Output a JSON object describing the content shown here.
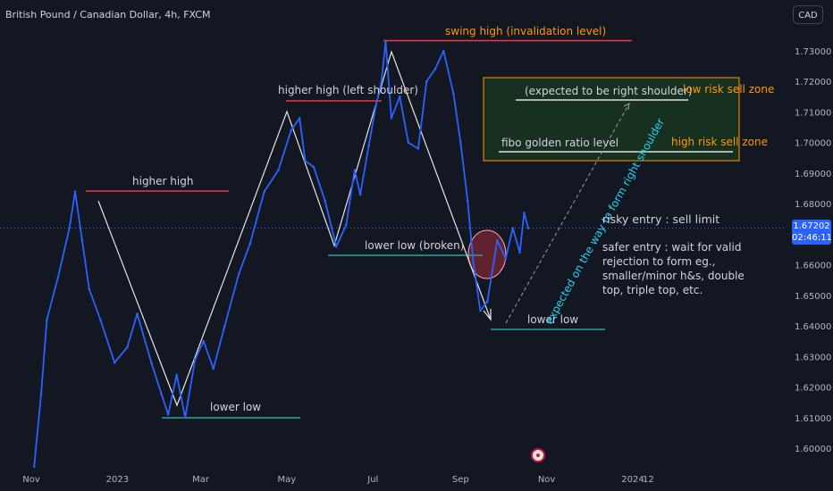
{
  "header": {
    "symbol": "British Pound / Canadian Dollar, 4h, FXCM",
    "currency": "CAD"
  },
  "price_badge": {
    "price": "1.67202",
    "countdown": "02:46:11"
  },
  "annotations": {
    "swing_high": "swing high (invalidation level)",
    "higher_high_left": "higher high (left shoulder)",
    "higher_high": "higher high",
    "lower_low_broken": "lower low (broken)",
    "lower_low_1": "lower low",
    "lower_low_2": "lower low",
    "expected_right_shoulder": "(expected to be right shoulder)",
    "fibo": "fibo golden ratio level",
    "low_risk_zone": "low risk sell zone",
    "high_risk_zone": "high risk sell zone",
    "diagonal": "expected on the way to form right shoulder",
    "risky_entry": "risky entry : sell limit",
    "safer_entry": "safer entry : wait for valid rejection to form eg., smaller/minor h&s, double top, triple top, etc."
  },
  "colors": {
    "background": "#131722",
    "price_line": "#2962ff",
    "resistance": "#f23645",
    "support": "#26a69a",
    "zone_border": "#ff9800",
    "zone_fill": "#1b3a1f",
    "label_orange": "#ff9800",
    "label_cyan": "#22d3ee",
    "text": "#d1d4dc"
  },
  "chart_data": {
    "type": "line",
    "title": "British Pound / Canadian Dollar, 4h, FXCM",
    "ylim": [
      1.592,
      1.7425
    ],
    "y_ticks": [
      "1.73000",
      "1.72000",
      "1.71000",
      "1.70000",
      "1.69000",
      "1.68000",
      "1.67000",
      "1.66000",
      "1.65000",
      "1.64000",
      "1.63000",
      "1.62000",
      "1.61000",
      "1.60000"
    ],
    "y_tick_values": [
      1.73,
      1.72,
      1.71,
      1.7,
      1.69,
      1.68,
      1.67,
      1.66,
      1.65,
      1.64,
      1.63,
      1.62,
      1.61,
      1.6
    ],
    "x_ticks": [
      "Nov",
      "2023",
      "Mar",
      "May",
      "Jul",
      "Sep",
      "Nov",
      "2024",
      "12"
    ],
    "x_tick_dates": [
      "2022-11-01",
      "2023-01-01",
      "2023-03-01",
      "2023-05-01",
      "2023-07-01",
      "2023-09-01",
      "2023-11-01",
      "2024-01-01",
      "2024-01-12"
    ],
    "grid": false,
    "last_price": 1.67202,
    "series": [
      {
        "x": [
          "2022-11-03",
          "2022-11-08",
          "2022-11-12",
          "2022-11-20",
          "2022-11-28",
          "2022-12-02",
          "2022-12-07",
          "2022-12-12",
          "2022-12-20",
          "2022-12-30",
          "2023-01-08",
          "2023-01-15",
          "2023-01-25",
          "2023-02-01",
          "2023-02-06",
          "2023-02-12",
          "2023-02-18",
          "2023-02-25",
          "2023-03-03",
          "2023-03-10",
          "2023-03-18",
          "2023-03-28",
          "2023-04-05",
          "2023-04-15",
          "2023-04-25",
          "2023-05-04",
          "2023-05-10",
          "2023-05-14",
          "2023-05-20",
          "2023-05-28",
          "2023-06-05",
          "2023-06-12",
          "2023-06-18",
          "2023-06-22",
          "2023-06-28",
          "2023-07-03",
          "2023-07-07",
          "2023-07-10",
          "2023-07-14",
          "2023-07-20",
          "2023-07-26",
          "2023-08-02",
          "2023-08-08",
          "2023-08-14",
          "2023-08-20",
          "2023-08-27",
          "2023-09-01",
          "2023-09-06",
          "2023-09-10",
          "2023-09-15",
          "2023-09-20",
          "2023-09-27",
          "2023-10-03",
          "2023-10-08",
          "2023-10-13",
          "2023-10-16",
          "2023-10-19"
        ],
        "values": [
          1.594,
          1.618,
          1.642,
          1.656,
          1.672,
          1.684,
          1.668,
          1.652,
          1.642,
          1.628,
          1.633,
          1.644,
          1.628,
          1.618,
          1.611,
          1.624,
          1.61,
          1.629,
          1.635,
          1.626,
          1.64,
          1.657,
          1.667,
          1.684,
          1.691,
          1.704,
          1.708,
          1.694,
          1.692,
          1.681,
          1.666,
          1.673,
          1.691,
          1.683,
          1.699,
          1.712,
          1.72,
          1.733,
          1.708,
          1.715,
          1.7,
          1.698,
          1.72,
          1.724,
          1.73,
          1.716,
          1.7,
          1.681,
          1.661,
          1.645,
          1.648,
          1.668,
          1.662,
          1.672,
          1.664,
          1.677,
          1.672
        ]
      }
    ]
  }
}
